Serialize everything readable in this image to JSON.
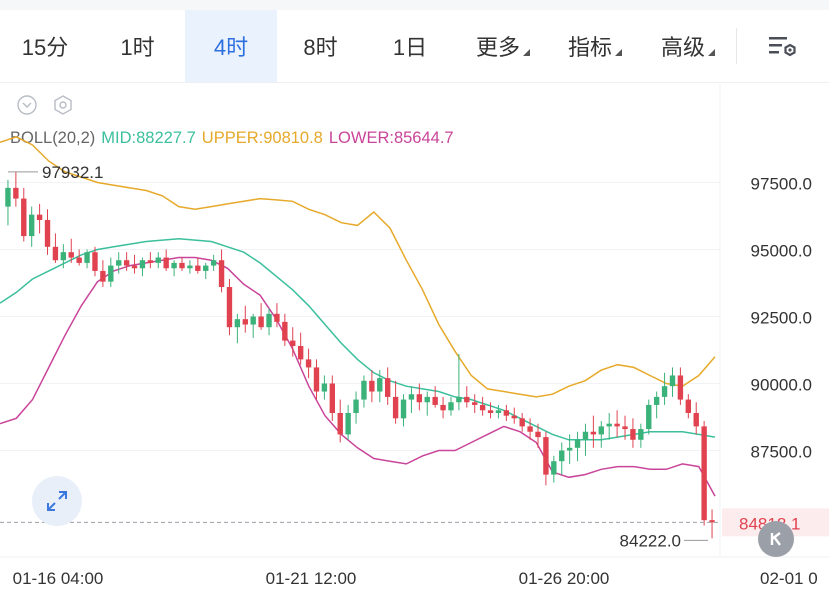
{
  "tabs": [
    {
      "label": "15分",
      "active": false
    },
    {
      "label": "1时",
      "active": false
    },
    {
      "label": "4时",
      "active": true
    },
    {
      "label": "8时",
      "active": false
    },
    {
      "label": "1日",
      "active": false
    },
    {
      "label": "更多",
      "active": false,
      "dropdown": true
    },
    {
      "label": "指标",
      "active": false,
      "dropdown": true
    },
    {
      "label": "高级",
      "active": false,
      "dropdown": true
    }
  ],
  "icons": {
    "settings": "chart-settings-icon",
    "collapse": "chevron-down-circle-icon",
    "hexagon": "hexagon-settings-icon",
    "expand": "expand-arrows-icon",
    "kline": "k-line-icon"
  },
  "indicator": {
    "name": "BOLL(20,2)",
    "mid_label": "MID:88227.7",
    "upper_label": "UPPER:90810.8",
    "lower_label": "LOWER:85644.7",
    "colors": {
      "mid": "#3bbf9c",
      "upper": "#e6a92a",
      "lower": "#c9459a",
      "name": "#666666"
    }
  },
  "chart_data": {
    "type": "candlestick",
    "symbol_interval": "4时",
    "y_ticks": [
      97500.0,
      95000.0,
      92500.0,
      90000.0,
      87500.0
    ],
    "y_tick_labels": [
      "97500.0",
      "95000.0",
      "92500.0",
      "90000.0",
      "87500.0"
    ],
    "ylim": [
      83500,
      99800
    ],
    "x_tick_labels": [
      "01-16 04:00",
      "01-21 12:00",
      "01-26 20:00",
      "02-01 0"
    ],
    "high_marker": {
      "label": "97932.1",
      "value": 97932.1
    },
    "low_marker": {
      "label": "84222.0",
      "value": 84222.0
    },
    "last_price": {
      "label": "84818.1",
      "value": 84818.1,
      "color": "#e0424f"
    },
    "colors": {
      "up": "#3bb27a",
      "down": "#e0424f",
      "grid": "#eef0f3"
    },
    "candles": [
      [
        96600,
        97600,
        95900,
        97300
      ],
      [
        97300,
        97900,
        96600,
        96900
      ],
      [
        96900,
        97300,
        95300,
        95500
      ],
      [
        95500,
        96600,
        95100,
        96300
      ],
      [
        96300,
        96700,
        95600,
        96100
      ],
      [
        96100,
        96500,
        94800,
        95100
      ],
      [
        95100,
        95600,
        94500,
        94600
      ],
      [
        94600,
        95200,
        94300,
        94900
      ],
      [
        94900,
        95400,
        94500,
        94700
      ],
      [
        94700,
        95000,
        94400,
        94500
      ],
      [
        94500,
        95000,
        94300,
        94900
      ],
      [
        94900,
        95100,
        94000,
        94200
      ],
      [
        94200,
        94600,
        93600,
        93800
      ],
      [
        93800,
        94700,
        93600,
        94400
      ],
      [
        94400,
        94900,
        94100,
        94600
      ],
      [
        94600,
        94900,
        94200,
        94400
      ],
      [
        94400,
        94800,
        94100,
        94300
      ],
      [
        94300,
        94700,
        94000,
        94600
      ],
      [
        94600,
        94900,
        94300,
        94500
      ],
      [
        94500,
        94900,
        94300,
        94700
      ],
      [
        94700,
        95000,
        94200,
        94300
      ],
      [
        94300,
        94600,
        94000,
        94500
      ],
      [
        94500,
        94700,
        94200,
        94300
      ],
      [
        94300,
        94600,
        94100,
        94400
      ],
      [
        94400,
        94700,
        94100,
        94200
      ],
      [
        94200,
        94500,
        93900,
        94400
      ],
      [
        94400,
        94800,
        94200,
        94600
      ],
      [
        94600,
        95000,
        93400,
        93600
      ],
      [
        93600,
        93900,
        91800,
        92100
      ],
      [
        92100,
        92600,
        91500,
        92400
      ],
      [
        92400,
        92900,
        91900,
        92200
      ],
      [
        92200,
        92600,
        91700,
        92500
      ],
      [
        92500,
        93000,
        92000,
        92100
      ],
      [
        92100,
        92800,
        91800,
        92600
      ],
      [
        92600,
        93000,
        92100,
        92300
      ],
      [
        92300,
        92600,
        91400,
        91600
      ],
      [
        91600,
        92100,
        91000,
        91400
      ],
      [
        91400,
        91900,
        90700,
        90900
      ],
      [
        90900,
        91300,
        90200,
        90600
      ],
      [
        90600,
        90900,
        89400,
        89700
      ],
      [
        89700,
        90300,
        89400,
        90000
      ],
      [
        90000,
        90300,
        88600,
        88900
      ],
      [
        88900,
        89400,
        87800,
        88100
      ],
      [
        88100,
        89200,
        87900,
        88900
      ],
      [
        88900,
        89700,
        88500,
        89400
      ],
      [
        89400,
        90300,
        89100,
        90100
      ],
      [
        90100,
        90500,
        89300,
        89700
      ],
      [
        89700,
        90500,
        89300,
        90200
      ],
      [
        90200,
        90600,
        89200,
        89500
      ],
      [
        89500,
        90100,
        88500,
        88700
      ],
      [
        88700,
        89600,
        88400,
        89400
      ],
      [
        89400,
        89900,
        88900,
        89600
      ],
      [
        89600,
        90000,
        89000,
        89300
      ],
      [
        89300,
        89700,
        88800,
        89500
      ],
      [
        89500,
        89900,
        89100,
        89200
      ],
      [
        89200,
        89500,
        88700,
        89000
      ],
      [
        89000,
        89500,
        88800,
        89300
      ],
      [
        89300,
        91100,
        89000,
        89500
      ],
      [
        89500,
        89900,
        89100,
        89300
      ],
      [
        89300,
        89600,
        88900,
        89200
      ],
      [
        89200,
        89500,
        88800,
        89000
      ],
      [
        89000,
        89300,
        88700,
        88900
      ],
      [
        88900,
        89200,
        88700,
        89000
      ],
      [
        89000,
        89200,
        88600,
        88800
      ],
      [
        88800,
        89100,
        88500,
        88700
      ],
      [
        88700,
        88900,
        88200,
        88400
      ],
      [
        88400,
        88700,
        87900,
        88200
      ],
      [
        88200,
        88500,
        87600,
        88000
      ],
      [
        88000,
        88200,
        86200,
        86600
      ],
      [
        86600,
        87300,
        86300,
        87100
      ],
      [
        87100,
        87800,
        86600,
        87500
      ],
      [
        87500,
        88100,
        87000,
        87600
      ],
      [
        87600,
        88200,
        87100,
        87900
      ],
      [
        87900,
        88500,
        87300,
        88200
      ],
      [
        88200,
        88800,
        87600,
        88100
      ],
      [
        88100,
        88600,
        87600,
        88400
      ],
      [
        88400,
        88900,
        87900,
        88500
      ],
      [
        88500,
        89000,
        88000,
        88400
      ],
      [
        88400,
        88800,
        87900,
        88300
      ],
      [
        88300,
        88700,
        87600,
        87900
      ],
      [
        87900,
        88500,
        87600,
        88300
      ],
      [
        88300,
        89400,
        88100,
        89200
      ],
      [
        89200,
        89700,
        88700,
        89500
      ],
      [
        89500,
        90400,
        89200,
        89900
      ],
      [
        89900,
        90600,
        89500,
        90300
      ],
      [
        90300,
        90600,
        89200,
        89400
      ],
      [
        89400,
        89600,
        88700,
        88900
      ],
      [
        88900,
        89300,
        88100,
        88400
      ],
      [
        88400,
        88600,
        84700,
        84900
      ],
      [
        84900,
        85300,
        84222,
        84818
      ]
    ],
    "boll_upper": [
      99000,
      99200,
      98900,
      98300,
      97900,
      97700,
      97500,
      97400,
      97300,
      97200,
      97000,
      96600,
      96500,
      96600,
      96700,
      96800,
      96900,
      96850,
      96800,
      96500,
      96300,
      96000,
      95900,
      96400,
      95800,
      94600,
      93500,
      92200,
      91200,
      90300,
      89800,
      89700,
      89600,
      89500,
      89600,
      89900,
      90100,
      90500,
      90700,
      90600,
      90300,
      90000,
      89900,
      90300,
      91000
    ],
    "boll_mid": [
      93000,
      93400,
      93900,
      94200,
      94500,
      94800,
      95000,
      95100,
      95200,
      95300,
      95350,
      95400,
      95350,
      95300,
      95100,
      94900,
      94500,
      94000,
      93500,
      92900,
      92200,
      91500,
      90900,
      90400,
      90100,
      89900,
      89800,
      89700,
      89500,
      89400,
      89200,
      89000,
      88700,
      88400,
      88100,
      87900,
      87900,
      87900,
      88000,
      88100,
      88200,
      88200,
      88200,
      88100,
      88000
    ],
    "boll_lower": [
      88500,
      88700,
      89400,
      90600,
      91800,
      92900,
      93800,
      94200,
      94400,
      94500,
      94600,
      94700,
      94700,
      94600,
      94300,
      93700,
      93300,
      92400,
      91300,
      89900,
      88800,
      88100,
      87600,
      87200,
      87100,
      87000,
      87300,
      87500,
      87500,
      87800,
      88100,
      88400,
      88200,
      87800,
      86700,
      86500,
      86600,
      86800,
      86900,
      86900,
      86800,
      86800,
      87000,
      86900,
      85800
    ]
  }
}
